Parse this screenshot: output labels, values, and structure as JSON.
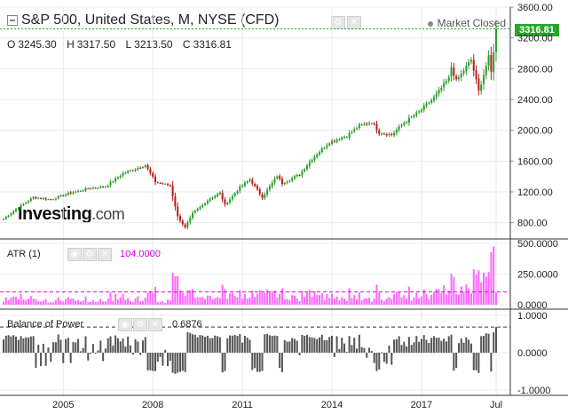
{
  "header": {
    "title": "S&P 500, United States, M, NYSE (CFD)",
    "status": "Market Closed",
    "ohlc": {
      "o_label": "O",
      "o": "3245.30",
      "h_label": "H",
      "h": "3317.50",
      "l_label": "L",
      "l": "3213.50",
      "c_label": "C",
      "c": "3316.81"
    }
  },
  "price_tag": "3316.81",
  "logo": {
    "main": "Investing",
    "suffix": ".com"
  },
  "indicators": {
    "atr": {
      "name": "ATR (1)",
      "value": "104.0000",
      "color": "#e600e6"
    },
    "bop": {
      "name": "Balance of Power",
      "value": "0.6876",
      "color": "#222222"
    }
  },
  "price_axis_labels": [
    "3600.00",
    "3200.00",
    "2800.00",
    "2400.00",
    "2000.00",
    "1600.00",
    "1200.00",
    "800.00"
  ],
  "atr_axis_labels": [
    "500.0000",
    "250.0000",
    "0.0000"
  ],
  "bop_axis_labels": [
    "1.0000",
    "0.0000",
    "-1.0000"
  ],
  "time_axis_labels": [
    "2005",
    "2008",
    "2011",
    "2014",
    "2017",
    "Jul"
  ],
  "colors": {
    "up": "#2e9e2e",
    "down": "#b71c1c",
    "atr": "#ff66ff",
    "bop": "#555555",
    "price_line": "#2aa52a"
  },
  "chart_data": {
    "type": "candlestick",
    "interval": "M",
    "x_range": [
      "2003-01",
      "2019-07"
    ],
    "ylim": [
      600,
      3600
    ],
    "close_anchors": [
      [
        "2003-01",
        850
      ],
      [
        "2003-06",
        975
      ],
      [
        "2004-01",
        1130
      ],
      [
        "2004-08",
        1100
      ],
      [
        "2005-03",
        1180
      ],
      [
        "2005-12",
        1250
      ],
      [
        "2006-06",
        1270
      ],
      [
        "2007-01",
        1440
      ],
      [
        "2007-10",
        1549
      ],
      [
        "2008-02",
        1330
      ],
      [
        "2008-08",
        1280
      ],
      [
        "2008-11",
        880
      ],
      [
        "2009-02",
        735
      ],
      [
        "2009-05",
        920
      ],
      [
        "2009-12",
        1115
      ],
      [
        "2010-04",
        1187
      ],
      [
        "2010-06",
        1030
      ],
      [
        "2010-12",
        1258
      ],
      [
        "2011-04",
        1363
      ],
      [
        "2011-09",
        1131
      ],
      [
        "2012-03",
        1408
      ],
      [
        "2012-05",
        1310
      ],
      [
        "2012-12",
        1426
      ],
      [
        "2013-05",
        1630
      ],
      [
        "2013-12",
        1848
      ],
      [
        "2014-07",
        1930
      ],
      [
        "2014-12",
        2059
      ],
      [
        "2015-05",
        2107
      ],
      [
        "2015-08",
        1972
      ],
      [
        "2016-01",
        1940
      ],
      [
        "2016-06",
        2098
      ],
      [
        "2016-12",
        2239
      ],
      [
        "2017-06",
        2423
      ],
      [
        "2017-12",
        2674
      ],
      [
        "2018-01",
        2824
      ],
      [
        "2018-03",
        2640
      ],
      [
        "2018-09",
        2914
      ],
      [
        "2018-12",
        2507
      ],
      [
        "2019-04",
        2946
      ],
      [
        "2019-05",
        2752
      ],
      [
        "2019-07",
        3316.81
      ]
    ]
  }
}
